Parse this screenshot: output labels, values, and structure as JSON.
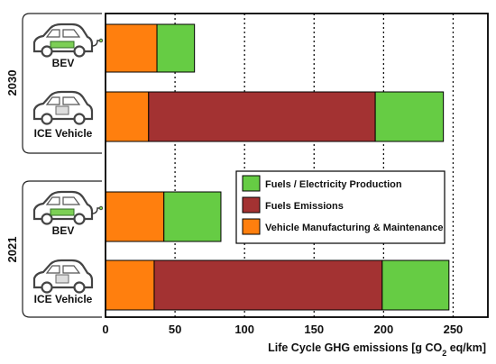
{
  "chart_data": {
    "type": "bar",
    "orientation": "horizontal",
    "stacked": true,
    "xlabel": "Life Cycle GHG emissions [g CO₂ eq/km]",
    "xlim": [
      0,
      275
    ],
    "xticks": [
      0,
      50,
      100,
      150,
      200,
      250
    ],
    "grid": "vertical dotted at 50, 100, 150, 200, 250",
    "legend_position": "center-right",
    "groups": [
      {
        "label": "2030",
        "rows": [
          "BEV",
          "ICE Vehicle"
        ]
      },
      {
        "label": "2021",
        "rows": [
          "BEV",
          "ICE Vehicle"
        ]
      }
    ],
    "rows": [
      {
        "group": "2030",
        "label": "BEV",
        "icon": "electric-car-icon",
        "values": {
          "manufacturing": 37,
          "fuel_emissions": 0,
          "production": 27
        }
      },
      {
        "group": "2030",
        "label": "ICE Vehicle",
        "icon": "combustion-car-icon",
        "values": {
          "manufacturing": 31,
          "fuel_emissions": 163,
          "production": 49
        }
      },
      {
        "group": "2021",
        "label": "BEV",
        "icon": "electric-car-icon",
        "values": {
          "manufacturing": 42,
          "fuel_emissions": 0,
          "production": 41
        }
      },
      {
        "group": "2021",
        "label": "ICE Vehicle",
        "icon": "combustion-car-icon",
        "values": {
          "manufacturing": 35,
          "fuel_emissions": 164,
          "production": 48
        }
      }
    ],
    "series": [
      {
        "key": "manufacturing",
        "name": "Vehicle Manufacturing & Maintenance",
        "color": "#ff7f0e"
      },
      {
        "key": "fuel_emissions",
        "name": "Fuels Emissions",
        "color": "#a33232"
      },
      {
        "key": "production",
        "name": "Fuels / Electricity Production",
        "color": "#66cc44"
      }
    ],
    "legend_order": [
      "production",
      "fuel_emissions",
      "manufacturing"
    ]
  }
}
